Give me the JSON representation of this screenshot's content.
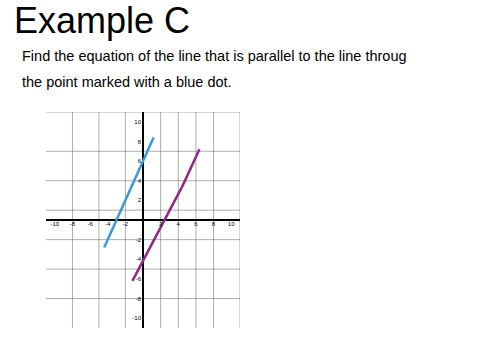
{
  "title": "Example C",
  "text": [
    "Find the equation of the line that is parallel to the line throug",
    "the point marked with a blue dot."
  ],
  "chart_data": {
    "type": "line",
    "xlim": [
      -11,
      11
    ],
    "ylim": [
      -11,
      11
    ],
    "xticks": [
      -10,
      -8,
      -6,
      -4,
      -2,
      2,
      4,
      6,
      8,
      10
    ],
    "yticks": [
      -10,
      -8,
      -6,
      -4,
      -2,
      2,
      4,
      6,
      8,
      10
    ],
    "grid": true,
    "series": [
      {
        "color": "#3a9ad9",
        "x": [
          -4.4,
          1.2
        ],
        "values": [
          -2.8,
          8.4
        ]
      },
      {
        "color": "#8e2a84",
        "x": [
          -1.2,
          4.5,
          6.4
        ],
        "values": [
          -6.2,
          3.5,
          7.2
        ]
      }
    ]
  }
}
